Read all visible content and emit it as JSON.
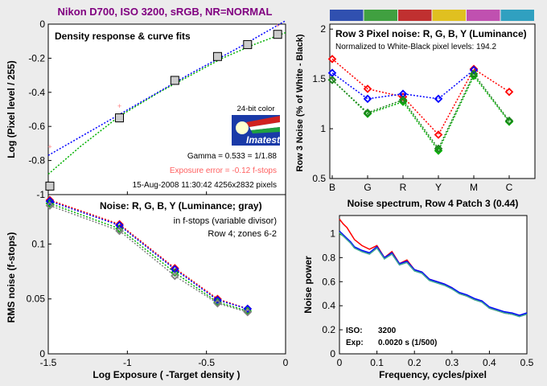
{
  "title": "Nikon D700, ISO 3200, sRGB, NR=NORMAL",
  "colors": {
    "background": "#ececec",
    "plot_bg": "#ffffff",
    "title": "#800080",
    "red": "#ff0000",
    "green": "#00b000",
    "blue": "#0000ff",
    "gray": "#808080",
    "marker_fill": "#cccccc",
    "pink": "#ff8080",
    "dark_green": "#208020",
    "teal": "#40a0a0",
    "pink_text": "#ff6060"
  },
  "logo": {
    "top_text": "24-bit color",
    "name": "Imatest"
  },
  "chart_data": [
    {
      "id": "density",
      "type": "line",
      "title": "Density response & curve fits",
      "xlabel": "",
      "ylabel": "Log (Pixel level / 255)",
      "xlim": [
        -1.5,
        0
      ],
      "ylim": [
        -1,
        0
      ],
      "xticks": [],
      "yticks": [
        0,
        -0.2,
        -0.4,
        -0.6,
        -0.8,
        -1
      ],
      "ytick_labels": [
        "0",
        "-0.2",
        "-0.4",
        "-0.6",
        "-0.8",
        "-1"
      ],
      "points": {
        "x": [
          -1.49,
          -1.05,
          -0.7,
          -0.43,
          -0.24,
          -0.05
        ],
        "y": [
          -0.95,
          -0.55,
          -0.33,
          -0.19,
          -0.12,
          -0.06
        ]
      },
      "reference_points": {
        "x": [
          -1.49,
          -1.05,
          -0.05
        ],
        "y": [
          -0.72,
          -0.48,
          -0.01
        ]
      },
      "fit_blue": {
        "x": [
          -1.5,
          -1.2,
          -0.9,
          -0.6,
          -0.3,
          0
        ],
        "y": [
          -0.77,
          -0.61,
          -0.45,
          -0.29,
          -0.14,
          0.02
        ]
      },
      "fit_green": {
        "x": [
          -1.5,
          -1.3,
          -1.05,
          -0.8,
          -0.6,
          -0.4,
          -0.2,
          0
        ],
        "y": [
          -0.88,
          -0.72,
          -0.54,
          -0.4,
          -0.3,
          -0.2,
          -0.12,
          -0.05
        ]
      },
      "annotations": [
        "Gamma = 0.533 = 1/1.88",
        "Exposure error = -0.12 f-stops",
        "15-Aug-2008 11:30:42   4256x2832 pixels"
      ]
    },
    {
      "id": "noise_fstops",
      "type": "line",
      "title": "Noise: R, G, B, Y (Luminance; gray)",
      "subtitle_1": "in f-stops (variable divisor)",
      "subtitle_2": "Row 4; zones 6-2",
      "xlabel": "Log Exposure ( -Target density )",
      "ylabel": "RMS noise (f-stops)",
      "xlim": [
        -1.5,
        0
      ],
      "ylim": [
        0,
        0.145
      ],
      "xticks": [
        -1.5,
        -1,
        -0.5,
        0
      ],
      "xtick_labels": [
        "-1.5",
        "-1",
        "-0.5",
        "0"
      ],
      "yticks": [
        0,
        0.05,
        0.1
      ],
      "ytick_labels": [
        "0",
        "0.05",
        "0.1"
      ],
      "x": [
        -1.49,
        -1.05,
        -0.7,
        -0.43,
        -0.24
      ],
      "series": [
        {
          "name": "R",
          "color": "red",
          "values": [
            0.14,
            0.118,
            0.078,
            0.05,
            0.041
          ]
        },
        {
          "name": "G",
          "color": "green",
          "values": [
            0.137,
            0.114,
            0.074,
            0.047,
            0.039
          ]
        },
        {
          "name": "B",
          "color": "blue",
          "values": [
            0.139,
            0.117,
            0.077,
            0.049,
            0.041
          ]
        },
        {
          "name": "Y",
          "color": "gray",
          "values": [
            0.135,
            0.112,
            0.071,
            0.046,
            0.038
          ]
        }
      ]
    },
    {
      "id": "row3_noise",
      "type": "line",
      "title": "Row 3 Pixel noise: R, G, B, Y (Luminance)",
      "subtitle": "Normalized to White-Black pixel levels: 194.2",
      "xlabel": "",
      "ylabel": "Row 3 Noise (% of White - Black)",
      "ylim": [
        0.5,
        2.05
      ],
      "yticks": [
        0.5,
        1,
        1.5,
        2
      ],
      "ytick_labels": [
        "0.5",
        "1",
        "1.5",
        "2"
      ],
      "categories": [
        "B",
        "G",
        "R",
        "Y",
        "M",
        "C"
      ],
      "color_strip": [
        "#3050b0",
        "#40a040",
        "#c03030",
        "#e0c020",
        "#c050b0",
        "#30a0c0"
      ],
      "series": [
        {
          "name": "R",
          "color": "red",
          "values": [
            1.7,
            1.4,
            1.32,
            0.94,
            1.6,
            1.37
          ]
        },
        {
          "name": "G",
          "color": "green",
          "values": [
            1.49,
            1.15,
            1.27,
            0.78,
            1.53,
            1.07
          ]
        },
        {
          "name": "B",
          "color": "blue",
          "values": [
            1.56,
            1.3,
            1.35,
            1.3,
            1.59,
            null
          ]
        },
        {
          "name": "Y",
          "color": "dark_green",
          "values": [
            1.49,
            1.16,
            1.29,
            0.8,
            1.55,
            1.08
          ]
        }
      ]
    },
    {
      "id": "spectrum",
      "type": "line",
      "title": "Noise spectrum, Row 4 Patch 3 (0.44)",
      "xlabel": "Frequency, cycles/pixel",
      "ylabel": "Noise power",
      "xlim": [
        0,
        0.5
      ],
      "ylim": [
        0,
        1.15
      ],
      "xticks": [
        0,
        0.1,
        0.2,
        0.3,
        0.4,
        0.5
      ],
      "xtick_labels": [
        "0",
        "0.1",
        "0.2",
        "0.3",
        "0.4",
        "0.5"
      ],
      "yticks": [
        0,
        0.2,
        0.4,
        0.6,
        0.8,
        1
      ],
      "ytick_labels": [
        "0",
        "0.2",
        "0.4",
        "0.6",
        "0.8",
        "1"
      ],
      "info": [
        {
          "label": "ISO:",
          "value": "3200"
        },
        {
          "label": "Exp:",
          "value": "0.0020 s  (1/500)"
        }
      ],
      "series": [
        {
          "name": "R",
          "color": "red",
          "x": [
            0,
            0.01,
            0.02,
            0.03,
            0.04,
            0.06,
            0.08,
            0.1,
            0.12,
            0.14,
            0.16,
            0.18,
            0.2,
            0.22,
            0.24,
            0.26,
            0.28,
            0.3,
            0.32,
            0.34,
            0.36,
            0.38,
            0.4,
            0.42,
            0.44,
            0.46,
            0.48,
            0.5
          ],
          "values": [
            1.12,
            1.08,
            1.05,
            1.0,
            0.95,
            0.9,
            0.87,
            0.9,
            0.8,
            0.85,
            0.75,
            0.78,
            0.7,
            0.68,
            0.62,
            0.6,
            0.58,
            0.55,
            0.5,
            0.48,
            0.45,
            0.44,
            0.38,
            0.36,
            0.34,
            0.33,
            0.32,
            0.33
          ]
        },
        {
          "name": "G",
          "color": "green",
          "x": [
            0,
            0.01,
            0.02,
            0.03,
            0.04,
            0.06,
            0.08,
            0.1,
            0.12,
            0.14,
            0.16,
            0.18,
            0.2,
            0.22,
            0.24,
            0.26,
            0.28,
            0.3,
            0.32,
            0.34,
            0.36,
            0.38,
            0.4,
            0.42,
            0.44,
            0.46,
            0.48,
            0.5
          ],
          "values": [
            1.0,
            0.98,
            0.95,
            0.92,
            0.88,
            0.85,
            0.83,
            0.88,
            0.79,
            0.83,
            0.74,
            0.76,
            0.69,
            0.67,
            0.61,
            0.59,
            0.57,
            0.54,
            0.5,
            0.48,
            0.45,
            0.43,
            0.38,
            0.36,
            0.34,
            0.33,
            0.31,
            0.33
          ]
        },
        {
          "name": "B",
          "color": "blue",
          "x": [
            0,
            0.01,
            0.02,
            0.03,
            0.04,
            0.06,
            0.08,
            0.1,
            0.12,
            0.14,
            0.16,
            0.18,
            0.2,
            0.22,
            0.24,
            0.26,
            0.28,
            0.3,
            0.32,
            0.34,
            0.36,
            0.38,
            0.4,
            0.42,
            0.44,
            0.46,
            0.48,
            0.5
          ],
          "values": [
            1.02,
            0.99,
            0.96,
            0.93,
            0.89,
            0.86,
            0.84,
            0.89,
            0.8,
            0.84,
            0.75,
            0.77,
            0.7,
            0.68,
            0.62,
            0.6,
            0.58,
            0.55,
            0.51,
            0.49,
            0.46,
            0.44,
            0.39,
            0.37,
            0.35,
            0.34,
            0.32,
            0.34
          ]
        },
        {
          "name": "Y",
          "color": "teal",
          "x": [
            0,
            0.01,
            0.02,
            0.03,
            0.04,
            0.06,
            0.08,
            0.1,
            0.12,
            0.14,
            0.16,
            0.18,
            0.2,
            0.22,
            0.24,
            0.26,
            0.28,
            0.3,
            0.32,
            0.34,
            0.36,
            0.38,
            0.4,
            0.42,
            0.44,
            0.46,
            0.48,
            0.5
          ],
          "values": [
            1.01,
            0.98,
            0.95,
            0.92,
            0.88,
            0.85,
            0.83,
            0.88,
            0.79,
            0.83,
            0.74,
            0.76,
            0.69,
            0.67,
            0.61,
            0.59,
            0.57,
            0.54,
            0.5,
            0.48,
            0.45,
            0.43,
            0.38,
            0.36,
            0.34,
            0.33,
            0.31,
            0.33
          ]
        }
      ]
    }
  ]
}
